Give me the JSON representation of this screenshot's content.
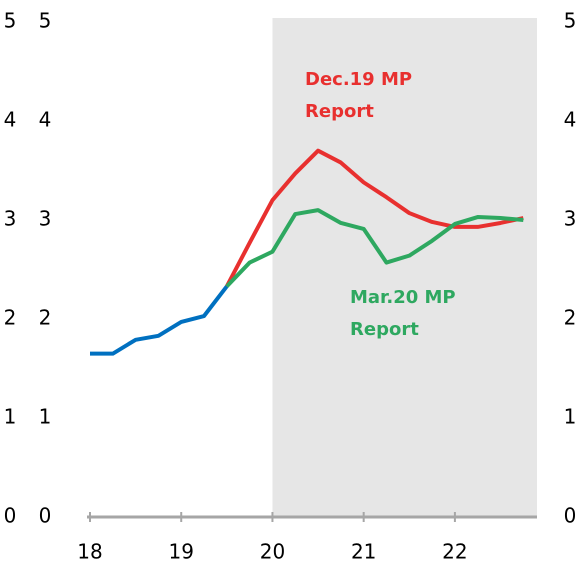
{
  "chart_data": {
    "type": "line",
    "xlim": [
      18,
      22.9
    ],
    "xticks": [
      18,
      19,
      20,
      21,
      22
    ],
    "ylim": [
      0,
      5
    ],
    "yticks": [
      0,
      1,
      2,
      3,
      4,
      5
    ],
    "y2lim": [
      0,
      5
    ],
    "y2ticks": [
      0,
      1,
      2,
      3,
      4,
      5
    ],
    "shade": [
      20,
      22.9
    ],
    "shade_color": "#e6e6e6",
    "axis_color": "#a6a6a6",
    "series": [
      {
        "color": "#0070c0",
        "x": [
          18,
          18.25,
          18.5,
          18.75,
          19,
          19.25,
          19.5
        ],
        "values": [
          1.65,
          1.65,
          1.79,
          1.83,
          1.97,
          2.03,
          2.33
        ]
      },
      {
        "color": "#e8302f",
        "x": [
          19.5,
          19.75,
          20,
          20.25,
          20.5,
          20.75,
          21,
          21.25,
          21.5,
          21.75,
          22,
          22.25,
          22.5,
          22.75
        ],
        "values": [
          2.33,
          2.77,
          3.2,
          3.47,
          3.7,
          3.58,
          3.38,
          3.23,
          3.07,
          2.98,
          2.93,
          2.93,
          2.97,
          3.02
        ]
      },
      {
        "color": "#2ea860",
        "x": [
          19.5,
          19.75,
          20,
          20.25,
          20.5,
          20.75,
          21,
          21.25,
          21.5,
          21.75,
          22,
          22.25,
          22.5,
          22.75
        ],
        "values": [
          2.33,
          2.57,
          2.68,
          3.06,
          3.1,
          2.97,
          2.91,
          2.57,
          2.64,
          2.79,
          2.96,
          3.03,
          3.02,
          3.0
        ]
      }
    ],
    "annotations": [
      {
        "text": [
          "Dec.19 MP",
          "Report"
        ],
        "color": "#e8302f"
      },
      {
        "text": [
          "Mar.20 MP",
          "Report"
        ],
        "color": "#2ea860"
      }
    ]
  }
}
